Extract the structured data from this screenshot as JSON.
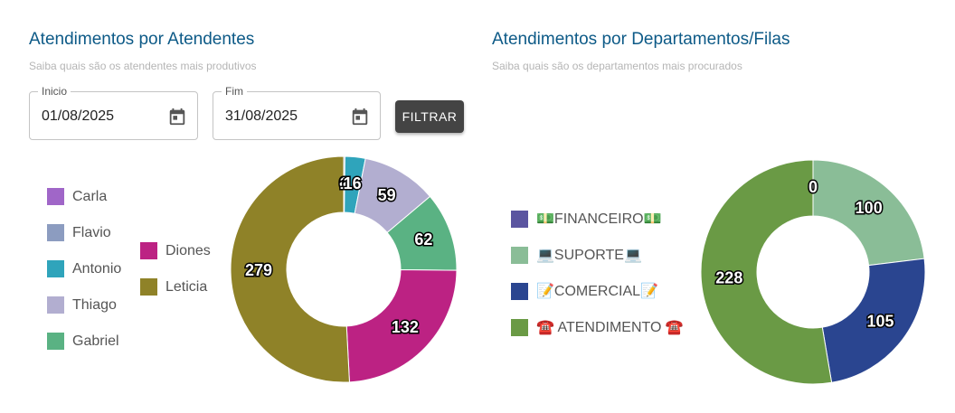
{
  "filters": {
    "start": {
      "label": "Inicio",
      "value": "01/08/2025"
    },
    "end": {
      "label": "Fim",
      "value": "31/08/2025"
    },
    "button": "FILTRAR"
  },
  "chart_data": [
    {
      "type": "donut",
      "title": "Atendimentos por Atendentes",
      "subtitle": "Saiba quais são os atendentes mais produtivos",
      "categories": [
        "Carla",
        "Flavio",
        "Antonio",
        "Thiago",
        "Gabriel",
        "Diones",
        "Leticia"
      ],
      "values": [
        0,
        1,
        16,
        59,
        62,
        132,
        279
      ],
      "colors": [
        "#a066c8",
        "#8c9cc0",
        "#2fa4bb",
        "#b2aed0",
        "#5ab283",
        "#bc2283",
        "#8f8228"
      ]
    },
    {
      "type": "donut",
      "title": "Atendimentos por Departamentos/Filas",
      "subtitle": "Saiba quais são os departamentos mais procurados",
      "categories": [
        "💵FINANCEIRO💵",
        "💻SUPORTE💻",
        "📝COMERCIAL📝",
        "☎️ ATENDIMENTO ☎️"
      ],
      "values": [
        0,
        100,
        105,
        228
      ],
      "colors": [
        "#5b55a0",
        "#8abd97",
        "#2a4590",
        "#6a9a45"
      ]
    }
  ]
}
